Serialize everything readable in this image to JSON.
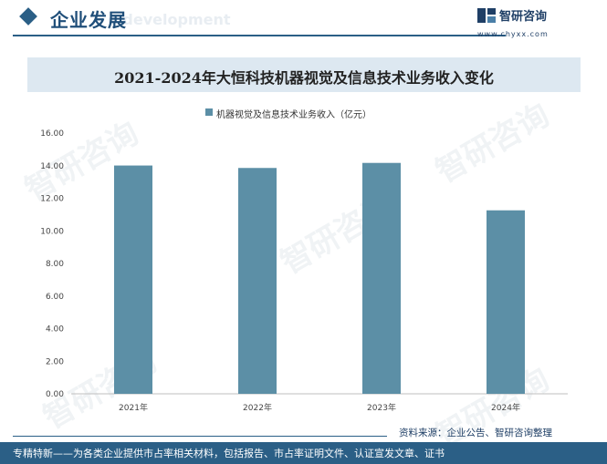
{
  "header": {
    "section_title": "企业发展",
    "section_ghost": "e development",
    "brand_name": "智研咨询",
    "brand_url": "www.chyxx.com"
  },
  "watermark_text": "智研咨询",
  "chart_data": {
    "type": "bar",
    "title": "2021-2024年大恒科技机器视觉及信息技术业务收入变化",
    "categories": [
      "2021年",
      "2022年",
      "2023年",
      "2024年"
    ],
    "series": [
      {
        "name": "机器视觉及信息技术业务收入（亿元）",
        "values": [
          14.01,
          13.86,
          14.17,
          11.26
        ]
      }
    ],
    "ylim": [
      0,
      16
    ],
    "yticks": [
      "0.00",
      "2.00",
      "4.00",
      "6.00",
      "8.00",
      "10.00",
      "12.00",
      "14.00",
      "16.00"
    ],
    "xlabel": "",
    "ylabel": "",
    "grid": false,
    "legend": "top-center",
    "bar_color": "#5c8fa6"
  },
  "source": "资料来源：企业公告、智研咨询整理",
  "footer": {
    "text": "专精特新——为各类企业提供市占率相关材料，包括报告、市占率证明文件、认证宣发文章、证书"
  },
  "colors": {
    "primary": "#2b5f86",
    "band": "#dde8f1"
  }
}
